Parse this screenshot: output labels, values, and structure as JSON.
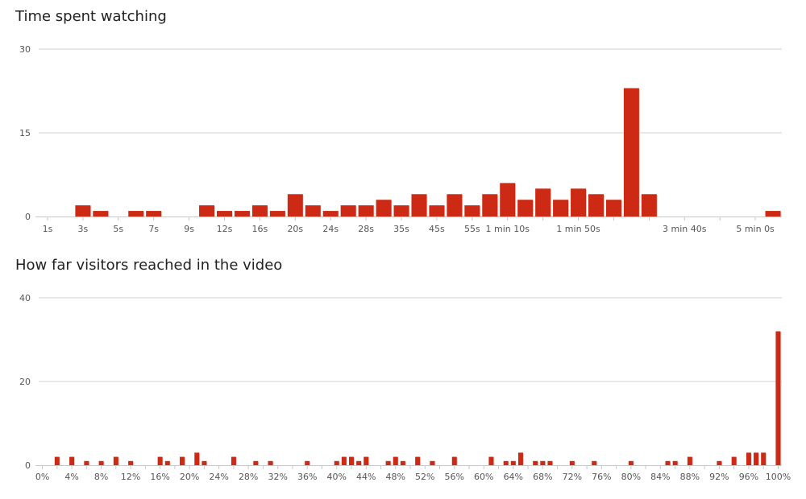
{
  "colors": {
    "bar": "#cc2a14",
    "grid": "#d0d0d0",
    "axis": "#c8c8c8"
  },
  "chart_data": [
    {
      "type": "bar",
      "title": "Time spent watching",
      "ylim": [
        0,
        30
      ],
      "yticks": [
        "0",
        "15",
        "30"
      ],
      "grid": true,
      "categories": [
        "1s",
        "",
        "3s",
        "",
        "5s",
        "",
        "7s",
        "",
        "9s",
        "",
        "12s",
        "",
        "16s",
        "",
        "20s",
        "",
        "24s",
        "",
        "28s",
        "",
        "35s",
        "",
        "45s",
        "",
        "55s",
        "",
        "1 min 10s",
        "",
        "",
        "",
        "1 min 50s",
        "",
        "",
        "",
        "",
        "",
        "3 min 40s",
        "",
        "",
        "",
        "5 min 0s",
        ""
      ],
      "values": [
        0,
        0,
        2,
        1,
        0,
        1,
        1,
        0,
        0,
        2,
        1,
        1,
        2,
        1,
        4,
        2,
        1,
        2,
        2,
        3,
        2,
        4,
        2,
        4,
        2,
        4,
        6,
        3,
        5,
        3,
        5,
        4,
        3,
        23,
        4,
        0,
        0,
        0,
        0,
        0,
        0,
        1
      ]
    },
    {
      "type": "bar",
      "title": "How far visitors reached in the video",
      "ylim": [
        0,
        40
      ],
      "yticks": [
        "0",
        "20",
        "40"
      ],
      "grid": true,
      "xticks": [
        "0%",
        "4%",
        "8%",
        "12%",
        "16%",
        "20%",
        "24%",
        "28%",
        "32%",
        "36%",
        "40%",
        "44%",
        "48%",
        "52%",
        "56%",
        "60%",
        "64%",
        "68%",
        "72%",
        "76%",
        "80%",
        "84%",
        "88%",
        "92%",
        "96%",
        "100%"
      ],
      "values": [
        0,
        0,
        2,
        0,
        2,
        0,
        1,
        0,
        1,
        0,
        2,
        0,
        1,
        0,
        0,
        0,
        2,
        1,
        0,
        2,
        0,
        3,
        1,
        0,
        0,
        0,
        2,
        0,
        0,
        1,
        0,
        1,
        0,
        0,
        0,
        0,
        1,
        0,
        0,
        0,
        1,
        2,
        2,
        1,
        2,
        0,
        0,
        1,
        2,
        1,
        0,
        2,
        0,
        1,
        0,
        0,
        2,
        0,
        0,
        0,
        0,
        2,
        0,
        1,
        1,
        3,
        0,
        1,
        1,
        1,
        0,
        0,
        1,
        0,
        0,
        1,
        0,
        0,
        0,
        0,
        1,
        0,
        0,
        0,
        0,
        1,
        1,
        0,
        2,
        0,
        0,
        0,
        1,
        0,
        2,
        0,
        3,
        3,
        3,
        0,
        32
      ]
    }
  ]
}
